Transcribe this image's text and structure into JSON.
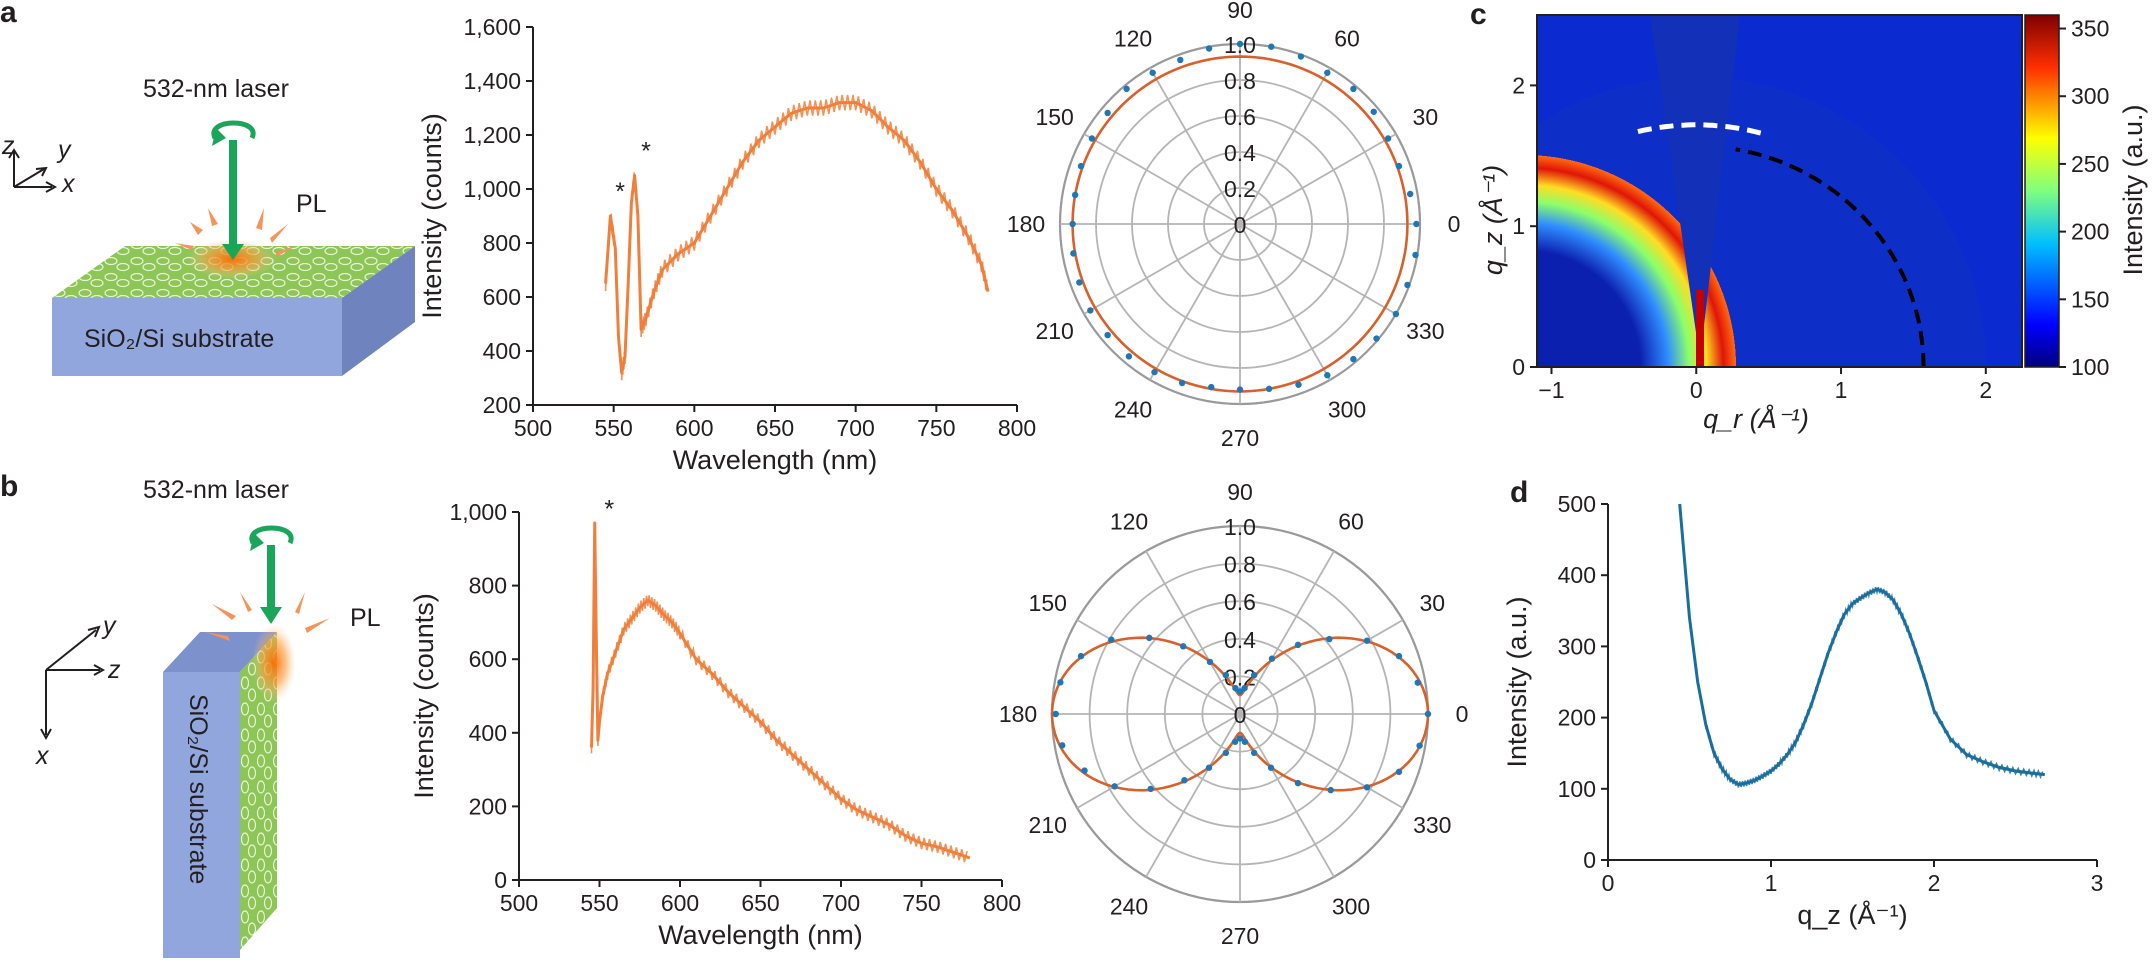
{
  "panels": {
    "a": {
      "letter": "a",
      "schematic": {
        "laser_label": "532-nm laser",
        "pl_label": "PL",
        "substrate_label": "SiO₂/Si substrate",
        "axes": [
          "z",
          "y",
          "x"
        ]
      }
    },
    "b": {
      "letter": "b",
      "schematic": {
        "laser_label": "532-nm laser",
        "pl_label": "PL",
        "substrate_label": "SiO₂/Si substrate",
        "axes": [
          "y",
          "z",
          "x"
        ]
      }
    },
    "c": {
      "letter": "c"
    },
    "d": {
      "letter": "d"
    }
  },
  "chart_data": [
    {
      "id": "a-spectrum",
      "type": "line",
      "xlabel": "Wavelength (nm)",
      "ylabel": "Intensity (counts)",
      "xlim": [
        500,
        800
      ],
      "ylim": [
        200,
        1600
      ],
      "xticks": [
        "500",
        "550",
        "600",
        "650",
        "700",
        "750",
        "800"
      ],
      "yticks": [
        "200",
        "400",
        "600",
        "800",
        "1,000",
        "1,200",
        "1,400",
        "1,600"
      ],
      "color": "#f07f3c",
      "annotations": [
        "*",
        "*"
      ],
      "series": [
        {
          "x": [
            545,
            548,
            551,
            553,
            555,
            557,
            559,
            561,
            563,
            565,
            567,
            570,
            575,
            580,
            590,
            600,
            610,
            620,
            630,
            640,
            650,
            660,
            670,
            680,
            690,
            700,
            710,
            720,
            730,
            740,
            750,
            760,
            770,
            778,
            782
          ],
          "y": [
            650,
            900,
            780,
            450,
            320,
            380,
            650,
            950,
            1050,
            900,
            480,
            520,
            620,
            700,
            760,
            800,
            900,
            1000,
            1100,
            1180,
            1230,
            1280,
            1300,
            1300,
            1320,
            1320,
            1290,
            1230,
            1180,
            1100,
            1000,
            920,
            820,
            720,
            620
          ]
        }
      ]
    },
    {
      "id": "a-polar",
      "type": "polar",
      "angle_ticks": [
        "0",
        "30",
        "60",
        "90",
        "120",
        "150",
        "180",
        "210",
        "240",
        "270",
        "300",
        "330"
      ],
      "radial_ticks": [
        "0",
        "0.2",
        "0.4",
        "0.6",
        "0.8",
        "1.0"
      ],
      "rlim": [
        0,
        1.0
      ],
      "fit_color": "#d95f2b",
      "dot_color": "#1f77b4",
      "fit": {
        "model": "isotropic",
        "r": 0.93
      },
      "points": [
        {
          "theta": 0,
          "r": 0.98
        },
        {
          "theta": 10,
          "r": 0.96
        },
        {
          "theta": 20,
          "r": 0.94
        },
        {
          "theta": 30,
          "r": 0.95
        },
        {
          "theta": 40,
          "r": 0.97
        },
        {
          "theta": 50,
          "r": 0.98
        },
        {
          "theta": 60,
          "r": 0.97
        },
        {
          "theta": 70,
          "r": 0.99
        },
        {
          "theta": 80,
          "r": 1.0
        },
        {
          "theta": 90,
          "r": 1.0
        },
        {
          "theta": 100,
          "r": 0.99
        },
        {
          "theta": 110,
          "r": 0.97
        },
        {
          "theta": 120,
          "r": 0.97
        },
        {
          "theta": 130,
          "r": 0.98
        },
        {
          "theta": 140,
          "r": 0.96
        },
        {
          "theta": 150,
          "r": 0.95
        },
        {
          "theta": 160,
          "r": 0.94
        },
        {
          "theta": 170,
          "r": 0.93
        },
        {
          "theta": 180,
          "r": 0.93
        },
        {
          "theta": 190,
          "r": 0.94
        },
        {
          "theta": 200,
          "r": 0.95
        },
        {
          "theta": 210,
          "r": 0.96
        },
        {
          "theta": 220,
          "r": 0.96
        },
        {
          "theta": 230,
          "r": 0.96
        },
        {
          "theta": 240,
          "r": 0.95
        },
        {
          "theta": 250,
          "r": 0.94
        },
        {
          "theta": 260,
          "r": 0.92
        },
        {
          "theta": 270,
          "r": 0.92
        },
        {
          "theta": 280,
          "r": 0.93
        },
        {
          "theta": 290,
          "r": 0.95
        },
        {
          "theta": 300,
          "r": 0.97
        },
        {
          "theta": 310,
          "r": 0.98
        },
        {
          "theta": 320,
          "r": 0.99
        },
        {
          "theta": 330,
          "r": 1.0
        },
        {
          "theta": 340,
          "r": 0.99
        },
        {
          "theta": 350,
          "r": 0.99
        }
      ]
    },
    {
      "id": "b-spectrum",
      "type": "line",
      "xlabel": "Wavelength (nm)",
      "ylabel": "Intensity (counts)",
      "xlim": [
        500,
        800
      ],
      "ylim": [
        0,
        1000
      ],
      "xticks": [
        "500",
        "550",
        "600",
        "650",
        "700",
        "750",
        "800"
      ],
      "yticks": [
        "0",
        "200",
        "400",
        "600",
        "800",
        "1,000"
      ],
      "color": "#f07f3c",
      "annotations": [
        "*"
      ],
      "series": [
        {
          "x": [
            545,
            546,
            547,
            548,
            549,
            550,
            552,
            555,
            560,
            565,
            570,
            575,
            580,
            585,
            590,
            595,
            600,
            610,
            620,
            630,
            640,
            650,
            660,
            670,
            680,
            690,
            700,
            710,
            720,
            730,
            740,
            750,
            760,
            770,
            780
          ],
          "y": [
            360,
            520,
            970,
            650,
            380,
            430,
            500,
            560,
            620,
            680,
            710,
            740,
            760,
            745,
            720,
            700,
            670,
            600,
            560,
            510,
            470,
            430,
            380,
            340,
            300,
            260,
            220,
            190,
            170,
            150,
            120,
            100,
            90,
            75,
            60
          ]
        }
      ]
    },
    {
      "id": "b-polar",
      "type": "polar",
      "angle_ticks": [
        "0",
        "30",
        "60",
        "90",
        "120",
        "150",
        "180",
        "210",
        "240",
        "270",
        "300",
        "330"
      ],
      "radial_ticks": [
        "0",
        "0.2",
        "0.4",
        "0.6",
        "0.8",
        "1.0"
      ],
      "rlim": [
        0,
        1.0
      ],
      "fit_color": "#d95f2b",
      "dot_color": "#1f77b4",
      "fit": {
        "model": "cos2",
        "a": 0.1,
        "b": 0.9
      },
      "points": [
        {
          "theta": 0,
          "r": 1.0
        },
        {
          "theta": 10,
          "r": 0.96
        },
        {
          "theta": 20,
          "r": 0.9
        },
        {
          "theta": 30,
          "r": 0.78
        },
        {
          "theta": 40,
          "r": 0.62
        },
        {
          "theta": 50,
          "r": 0.48
        },
        {
          "theta": 60,
          "r": 0.34
        },
        {
          "theta": 70,
          "r": 0.22
        },
        {
          "theta": 80,
          "r": 0.14
        },
        {
          "theta": 90,
          "r": 0.12
        },
        {
          "theta": 100,
          "r": 0.14
        },
        {
          "theta": 110,
          "r": 0.22
        },
        {
          "theta": 120,
          "r": 0.32
        },
        {
          "theta": 130,
          "r": 0.47
        },
        {
          "theta": 140,
          "r": 0.63
        },
        {
          "theta": 150,
          "r": 0.79
        },
        {
          "theta": 160,
          "r": 0.9
        },
        {
          "theta": 170,
          "r": 0.97
        },
        {
          "theta": 180,
          "r": 0.98
        },
        {
          "theta": 190,
          "r": 0.96
        },
        {
          "theta": 200,
          "r": 0.88
        },
        {
          "theta": 210,
          "r": 0.77
        },
        {
          "theta": 220,
          "r": 0.62
        },
        {
          "theta": 230,
          "r": 0.46
        },
        {
          "theta": 240,
          "r": 0.33
        },
        {
          "theta": 250,
          "r": 0.22
        },
        {
          "theta": 260,
          "r": 0.15
        },
        {
          "theta": 270,
          "r": 0.13
        },
        {
          "theta": 280,
          "r": 0.15
        },
        {
          "theta": 290,
          "r": 0.22
        },
        {
          "theta": 300,
          "r": 0.33
        },
        {
          "theta": 310,
          "r": 0.48
        },
        {
          "theta": 320,
          "r": 0.63
        },
        {
          "theta": 330,
          "r": 0.78
        },
        {
          "theta": 340,
          "r": 0.9
        },
        {
          "theta": 350,
          "r": 0.97
        }
      ]
    },
    {
      "id": "c-giwaxs",
      "type": "heatmap",
      "xlabel": "q_r (Å⁻¹)",
      "ylabel": "q_z (Å⁻¹)",
      "xlim": [
        -1.1,
        2.25
      ],
      "ylim": [
        0,
        2.5
      ],
      "xticks": [
        "−1",
        "0",
        "1",
        "2"
      ],
      "yticks": [
        "0",
        "1",
        "2"
      ],
      "colorbar": {
        "label": "Intensity (a.u.)",
        "range": [
          100,
          360
        ],
        "ticks": [
          "100",
          "150",
          "200",
          "250",
          "300",
          "350"
        ]
      },
      "ring": {
        "q": 1.7,
        "peak_intensity": 360
      },
      "arc_white": {
        "q": 1.72,
        "theta_range": [
          75,
          105
        ]
      },
      "arc_black": {
        "q": 1.57,
        "theta_range": [
          0,
          80
        ]
      }
    },
    {
      "id": "d-linecut",
      "type": "line",
      "xlabel": "q_z (Å⁻¹)",
      "ylabel": "Intensity (a.u.)",
      "xlim": [
        0,
        3
      ],
      "ylim": [
        0,
        500
      ],
      "xticks": [
        "0",
        "1",
        "2",
        "3"
      ],
      "yticks": [
        "0",
        "100",
        "200",
        "300",
        "400",
        "500"
      ],
      "color": "#1a6e9e",
      "series": [
        {
          "x": [
            0.44,
            0.47,
            0.5,
            0.55,
            0.6,
            0.65,
            0.7,
            0.75,
            0.8,
            0.85,
            0.9,
            0.95,
            1.0,
            1.05,
            1.1,
            1.15,
            1.2,
            1.25,
            1.3,
            1.35,
            1.4,
            1.45,
            1.5,
            1.55,
            1.6,
            1.65,
            1.7,
            1.75,
            1.8,
            1.85,
            1.9,
            1.95,
            2.0,
            2.1,
            2.2,
            2.3,
            2.4,
            2.5,
            2.6,
            2.68
          ],
          "y": [
            500,
            420,
            340,
            250,
            190,
            150,
            128,
            113,
            106,
            108,
            112,
            118,
            125,
            135,
            148,
            165,
            190,
            220,
            255,
            290,
            320,
            345,
            360,
            368,
            375,
            380,
            376,
            365,
            345,
            318,
            285,
            250,
            210,
            170,
            148,
            138,
            130,
            125,
            122,
            120
          ]
        }
      ]
    }
  ]
}
